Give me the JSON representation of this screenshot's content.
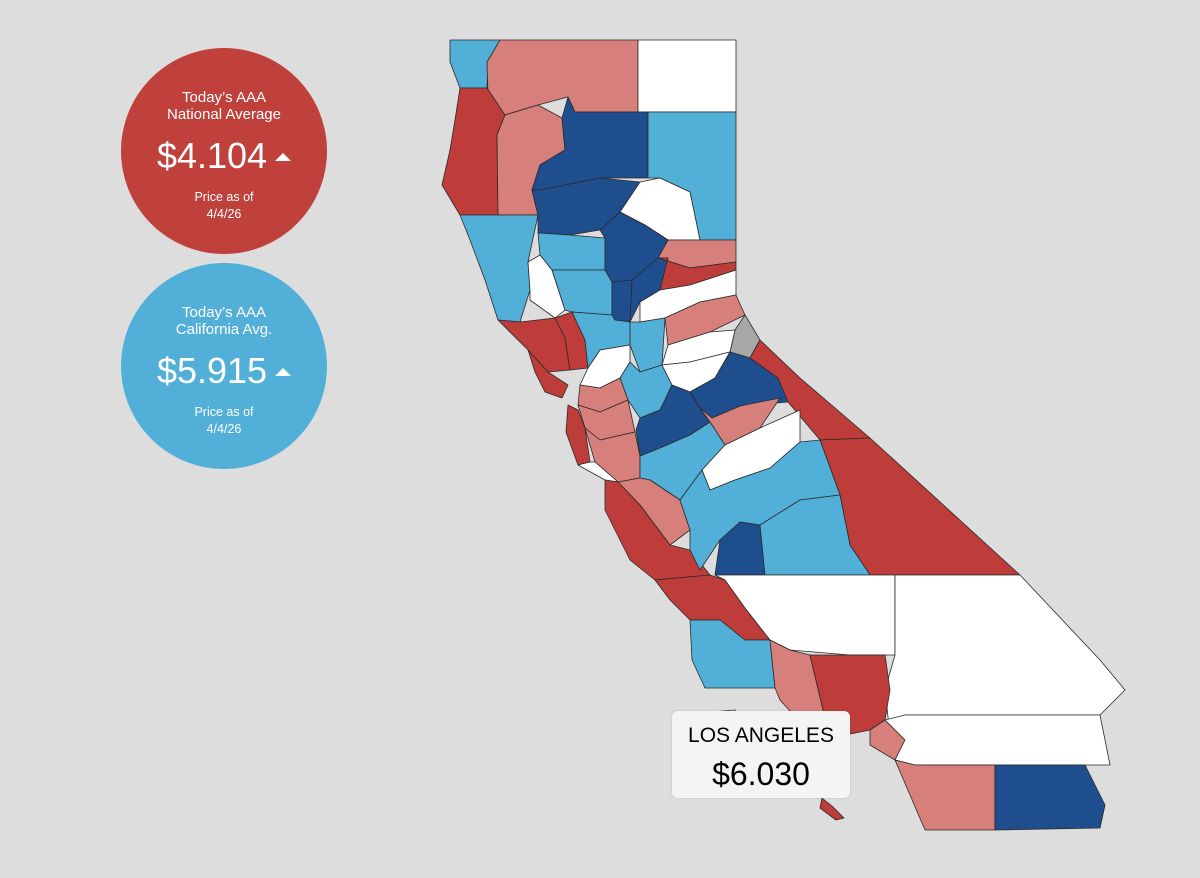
{
  "colors": {
    "background": "#dddddd",
    "dark_blue": "#1f4e8e",
    "light_blue": "#52b0d8",
    "dark_red": "#be3d3b",
    "pink": "#d67f7b",
    "white": "#ffffff",
    "gray": "#a8a8a8"
  },
  "national": {
    "line1": "Today’s AAA",
    "line2": "National Average",
    "price": "$4.104",
    "trend_icon": "arrow-up-icon",
    "line3": "Price as of",
    "date": "4/4/26"
  },
  "state": {
    "line1": "Today’s AAA",
    "line2": "California Avg.",
    "price": "$5.915",
    "trend_icon": "arrow-up-icon",
    "line3": "Price as of",
    "date": "4/4/26"
  },
  "tooltip": {
    "county": "LOS ANGELES",
    "price": "$6.030"
  }
}
